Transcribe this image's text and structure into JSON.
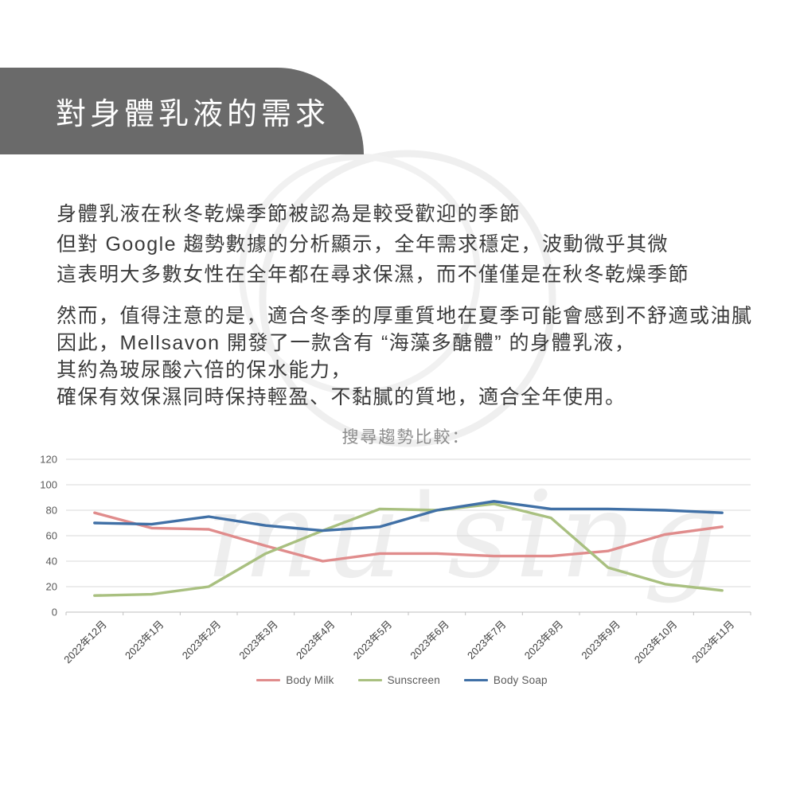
{
  "banner": {
    "title": "對身體乳液的需求",
    "bg_color": "#6a6a6a",
    "text_color": "#ffffff"
  },
  "paragraphs": {
    "p1_lines": [
      "身體乳液在秋冬乾燥季節被認為是較受歡迎的季節",
      "但對 Google 趨勢數據的分析顯示，全年需求穩定，波動微乎其微",
      "這表明大多數女性在全年都在尋求保濕，而不僅僅是在秋冬乾燥季節"
    ],
    "p2_lines": [
      "然而，值得注意的是，適合冬季的厚重質地在夏季可能會感到不舒適或油膩",
      "因此，Mellsavon 開發了一款含有 “海藻多醣體” 的身體乳液，",
      "其約為玻尿酸六倍的保水能力，",
      "確保有效保濕同時保持輕盈、不黏膩的質地，適合全年使用。"
    ]
  },
  "chart_data": {
    "type": "line",
    "title": "搜尋趨勢比較：",
    "xlabel": "",
    "ylabel": "",
    "categories": [
      "2022年12月",
      "2023年1月",
      "2023年2月",
      "2023年3月",
      "2023年4月",
      "2023年5月",
      "2023年6月",
      "2023年7月",
      "2023年8月",
      "2023年9月",
      "2023年10月",
      "2023年11月"
    ],
    "series": [
      {
        "name": "Body Milk",
        "color": "#e08c8c",
        "values": [
          78,
          66,
          65,
          52,
          40,
          46,
          46,
          44,
          44,
          48,
          61,
          67
        ]
      },
      {
        "name": "Sunscreen",
        "color": "#a9c080",
        "values": [
          13,
          14,
          20,
          46,
          64,
          81,
          80,
          85,
          74,
          35,
          22,
          17
        ]
      },
      {
        "name": "Body Soap",
        "color": "#4070a6",
        "values": [
          70,
          69,
          75,
          68,
          64,
          67,
          80,
          87,
          81,
          81,
          80,
          78
        ]
      }
    ],
    "ylim": [
      0,
      120
    ],
    "ytick_step": 20,
    "grid": true,
    "legend_position": "bottom",
    "axis_colors": {
      "gridline": "#d9d9d9",
      "axisline": "#bfbfbf",
      "ytick_label": "#595959",
      "xtick_label": "#404040"
    }
  },
  "watermark": {
    "script_text": "mu'sing"
  }
}
